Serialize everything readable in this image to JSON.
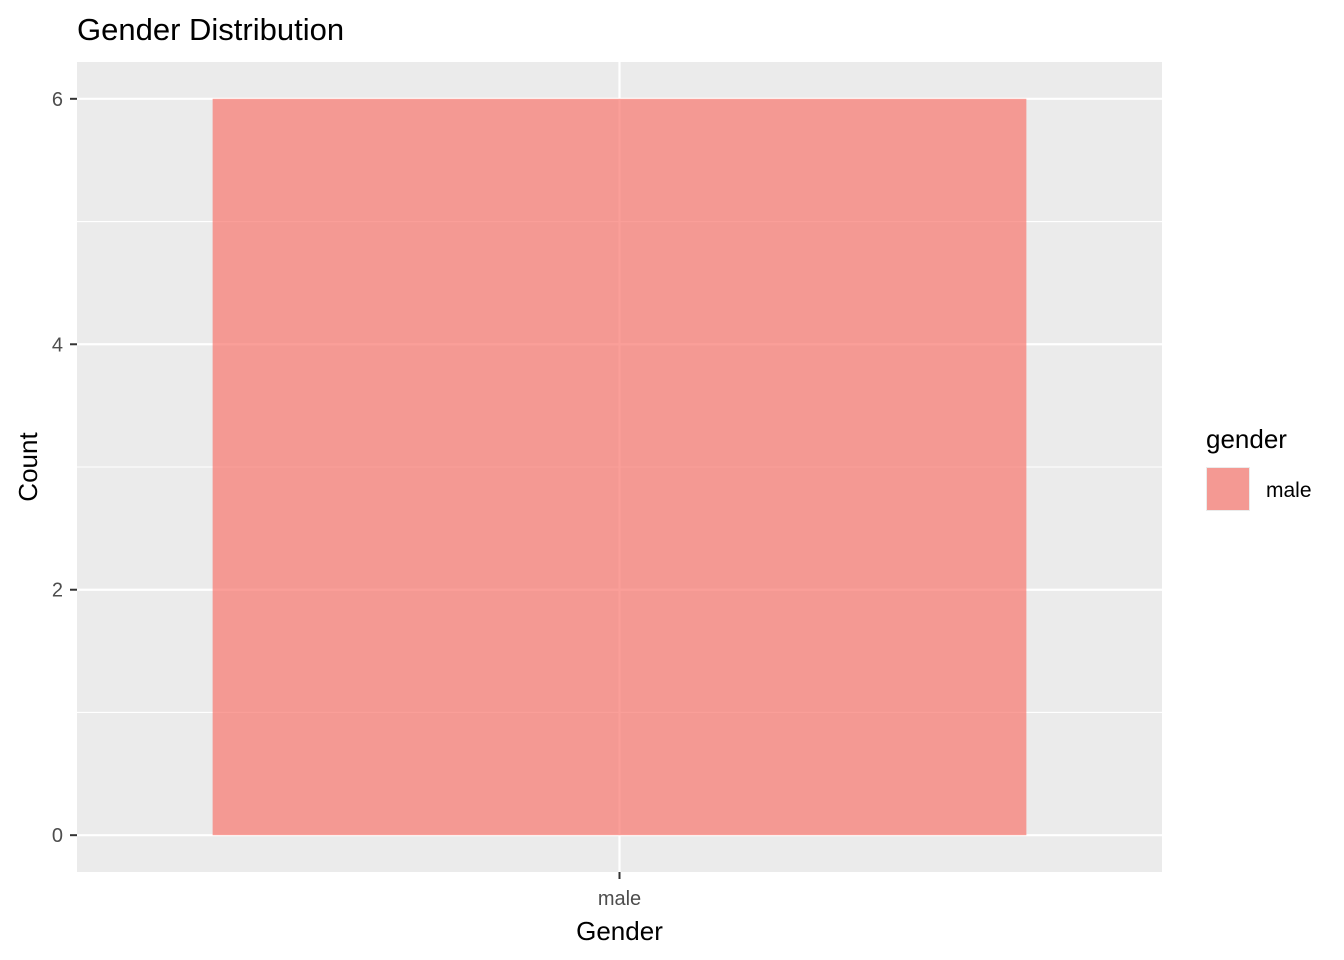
{
  "chart_data": {
    "type": "bar",
    "title": "Gender Distribution",
    "xlabel": "Gender",
    "ylabel": "Count",
    "categories": [
      "male"
    ],
    "values": [
      6
    ],
    "ylim": [
      -0.3,
      6.3
    ],
    "yticks": [
      "0",
      "2",
      "4",
      "6"
    ],
    "grid": true,
    "legend": {
      "title": "gender",
      "position": "right",
      "entries": [
        "male"
      ]
    },
    "colors": {
      "panel": "#ebebeb",
      "grid": "#ffffff",
      "bar": "#f8766d",
      "bar_opacity": 0.7,
      "tick": "#333333"
    }
  }
}
